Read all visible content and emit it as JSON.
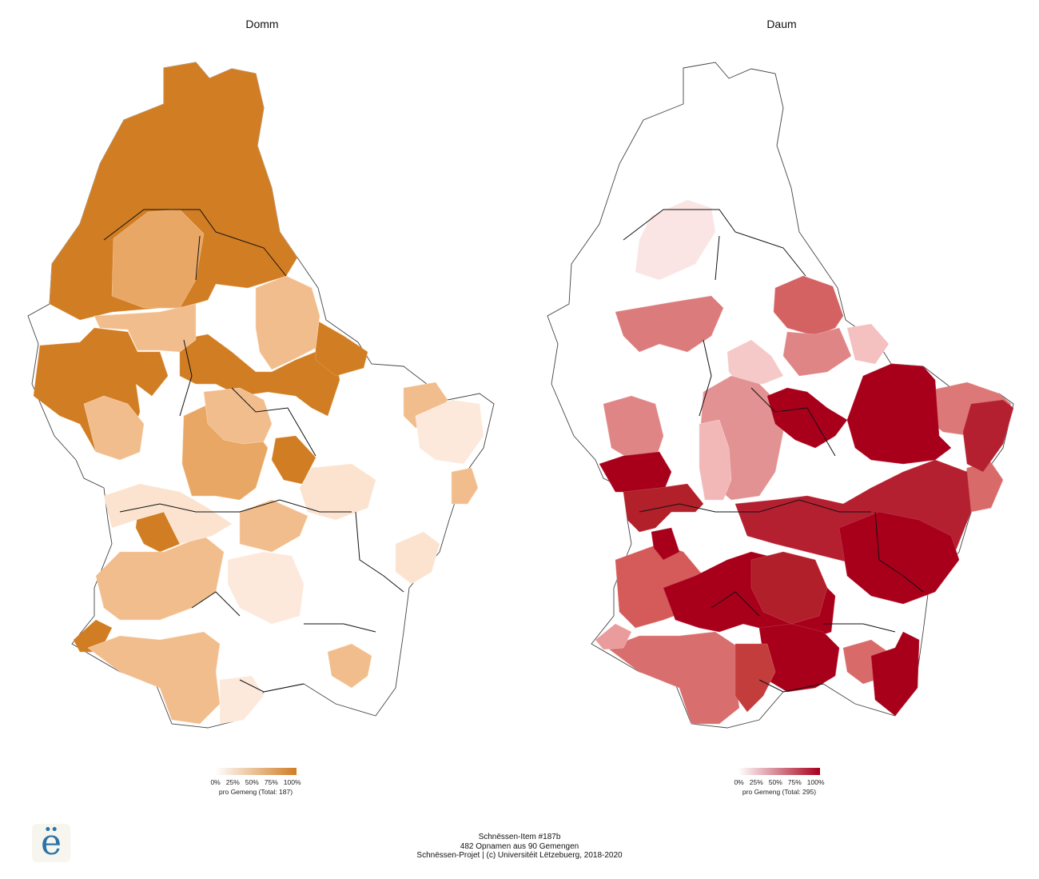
{
  "maps": [
    {
      "title": "Domm",
      "color": "#d17d24",
      "legend_ticks": [
        "0%",
        "25%",
        "50%",
        "75%",
        "100%"
      ],
      "legend_caption": "pro Gemeng (Total: 187)"
    },
    {
      "title": "Daum",
      "color": "#a8001b",
      "legend_ticks": [
        "0%",
        "25%",
        "50%",
        "75%",
        "100%"
      ],
      "legend_caption": "pro Gemeng (Total: 295)"
    }
  ],
  "footer": {
    "line1": "Schnëssen-Item #187b",
    "line2": "482 Opnamen aus 90 Gemengen",
    "line3": "Schnëssen-Projet | (c) Universitéit Lëtzebuerg, 2018-2020"
  },
  "logo": {
    "glyph": "ë",
    "icon": "schnessen-logo-icon"
  }
}
